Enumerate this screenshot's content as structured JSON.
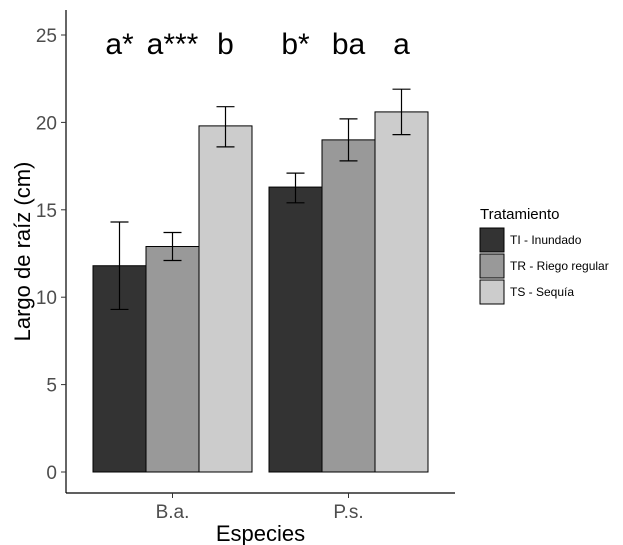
{
  "chart_data": {
    "type": "bar",
    "title": "",
    "xlabel": "Especies",
    "ylabel": "Largo de raíz (cm)",
    "ylim": [
      0,
      25.5
    ],
    "yticks": [
      0,
      5,
      10,
      15,
      20,
      25
    ],
    "categories": [
      "B.a.",
      "P.s."
    ],
    "grid": false,
    "legend": {
      "title": "Tratamiento",
      "placement": "right"
    },
    "series": [
      {
        "name": "TI - Inundado",
        "color": "#333333",
        "values": [
          11.8,
          16.3
        ],
        "error_low": [
          9.3,
          15.4
        ],
        "error_high": [
          14.3,
          17.1
        ],
        "labels": [
          "a*",
          "b*"
        ]
      },
      {
        "name": "TR - Riego regular",
        "color": "#999999",
        "values": [
          12.9,
          19.0
        ],
        "error_low": [
          12.1,
          17.8
        ],
        "error_high": [
          13.7,
          20.2
        ],
        "labels": [
          "a***",
          "ba"
        ]
      },
      {
        "name": "TS - Sequía",
        "color": "#cccccc",
        "values": [
          19.8,
          20.6
        ],
        "error_low": [
          18.6,
          19.3
        ],
        "error_high": [
          20.9,
          21.9
        ],
        "labels": [
          "b",
          "a"
        ]
      }
    ]
  }
}
